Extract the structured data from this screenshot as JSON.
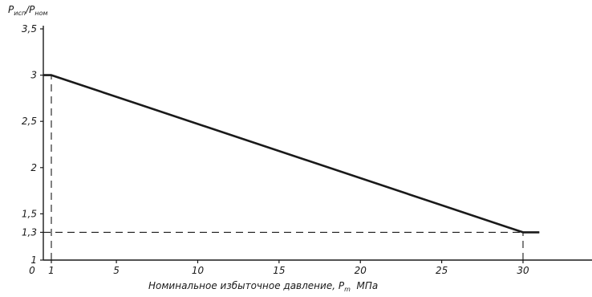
{
  "chart_data": {
    "type": "line",
    "ylabel": {
      "main": "P",
      "sub": "исп",
      "sep": "/P",
      "sub2": "ном"
    },
    "xlabel": {
      "prefix": "Номинальное избыточное давление, P",
      "sub": "m",
      "suffix": "  МПа"
    },
    "x_origin_label": "0",
    "xlim": [
      0,
      31
    ],
    "ylim": [
      1,
      3.5
    ],
    "x_ticks": [
      {
        "value": 1,
        "label": "1"
      },
      {
        "value": 5,
        "label": "5"
      },
      {
        "value": 10,
        "label": "10"
      },
      {
        "value": 15,
        "label": "15"
      },
      {
        "value": 20,
        "label": "20"
      },
      {
        "value": 25,
        "label": "25"
      },
      {
        "value": 30,
        "label": "30"
      }
    ],
    "y_ticks": [
      {
        "value": 1,
        "label": "1"
      },
      {
        "value": 1.3,
        "label": "1,3"
      },
      {
        "value": 1.5,
        "label": "1,5"
      },
      {
        "value": 2,
        "label": "2"
      },
      {
        "value": 2.5,
        "label": "2,5"
      },
      {
        "value": 3,
        "label": "3"
      },
      {
        "value": 3.5,
        "label": "3,5"
      }
    ],
    "series": [
      {
        "x": [
          0,
          1,
          30,
          31
        ],
        "y": [
          3.0,
          3.0,
          1.3,
          1.3
        ]
      }
    ],
    "reference_lines": [
      {
        "type": "vertical",
        "x": 1,
        "y_from": 1,
        "y_to": 3.0
      },
      {
        "type": "horizontal",
        "y": 1.3,
        "x_from": 0,
        "x_to": 31
      },
      {
        "type": "vertical",
        "x": 30,
        "y_from": 1,
        "y_to": 1.3
      }
    ],
    "grid": false,
    "colors": {
      "ink": "#1a1a1a",
      "background": "#ffffff"
    }
  }
}
